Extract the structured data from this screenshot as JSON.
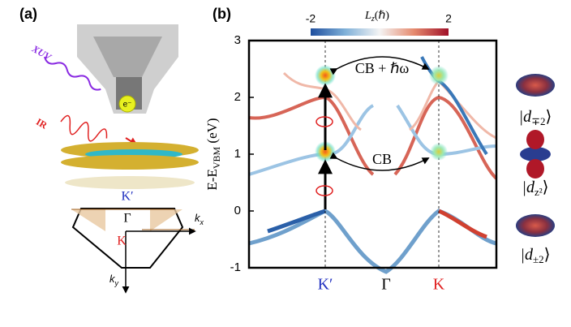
{
  "panel_a": {
    "label": "(a)",
    "xuv": "XUV",
    "ir": "IR",
    "electron": "e⁻",
    "kprime": "K′",
    "gamma": "Γ",
    "k": "K",
    "kx": "k",
    "kx_sub": "x",
    "ky": "k",
    "ky_sub": "y"
  },
  "panel_b": {
    "label": "(b)",
    "ylabel": "E-E",
    "ylabel_sub": "VBM",
    "ylabel_unit": " (eV)",
    "ylim": [
      -1,
      3
    ],
    "yticks": [
      -1,
      0,
      1,
      2,
      3
    ],
    "xticks": [
      "K′",
      "Γ",
      "K"
    ],
    "colorbar": {
      "ticks": [
        -2,
        2
      ],
      "label": "L",
      "label_sub": "z",
      "label_unit": "(ℏ)"
    },
    "annotations": [
      "CB + ℏω",
      "CB"
    ]
  },
  "orbitals": [
    {
      "main": "|d",
      "sub": "∓2",
      "close": "⟩"
    },
    {
      "main": "|d",
      "sub": "z²",
      "close": "⟩"
    },
    {
      "main": "|d",
      "sub": "±2",
      "close": "⟩"
    }
  ]
}
